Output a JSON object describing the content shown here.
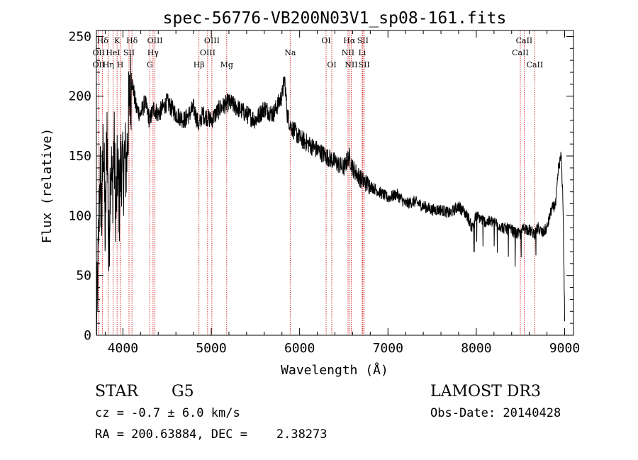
{
  "chart_data": {
    "type": "line",
    "title": "spec-56776-VB200N03V1_sp08-161.fits",
    "xlabel": "Wavelength (Å)",
    "ylabel": "Flux (relative)",
    "xlim": [
      3700,
      9100
    ],
    "ylim": [
      0,
      255
    ],
    "xticks": [
      4000,
      5000,
      6000,
      7000,
      8000,
      9000
    ],
    "yticks": [
      0,
      50,
      100,
      150,
      200,
      250
    ],
    "grid": false,
    "series": [
      {
        "name": "flux",
        "x": [
          3700,
          3720,
          3740,
          3760,
          3780,
          3800,
          3820,
          3840,
          3860,
          3880,
          3900,
          3920,
          3940,
          3960,
          3980,
          4000,
          4020,
          4040,
          4060,
          4080,
          4100,
          4150,
          4200,
          4250,
          4300,
          4350,
          4400,
          4500,
          4600,
          4700,
          4800,
          4860,
          4900,
          5000,
          5100,
          5200,
          5300,
          5400,
          5500,
          5600,
          5700,
          5800,
          5830,
          5860,
          5900,
          6000,
          6100,
          6200,
          6300,
          6400,
          6500,
          6560,
          6600,
          6700,
          6800,
          6900,
          7000,
          7100,
          7200,
          7300,
          7400,
          7500,
          7600,
          7700,
          7800,
          7900,
          7950,
          8000,
          8100,
          8200,
          8300,
          8400,
          8450,
          8500,
          8540,
          8600,
          8660,
          8700,
          8750,
          8800,
          8850,
          8900,
          8930,
          8960,
          8980,
          9000
        ],
        "y": [
          2,
          60,
          140,
          100,
          170,
          80,
          180,
          60,
          150,
          120,
          160,
          100,
          140,
          110,
          150,
          130,
          150,
          140,
          180,
          200,
          215,
          190,
          185,
          195,
          180,
          190,
          185,
          195,
          185,
          180,
          190,
          175,
          185,
          180,
          190,
          195,
          190,
          185,
          180,
          190,
          185,
          200,
          215,
          185,
          175,
          165,
          160,
          155,
          150,
          145,
          140,
          150,
          140,
          130,
          125,
          120,
          115,
          118,
          110,
          112,
          108,
          105,
          105,
          102,
          108,
          100,
          90,
          100,
          95,
          95,
          90,
          88,
          85,
          85,
          90,
          88,
          85,
          90,
          85,
          90,
          105,
          110,
          140,
          150,
          115,
          15
        ]
      }
    ],
    "line_markers": [
      {
        "label": "Hδ",
        "wavelength": 3770,
        "row": 0
      },
      {
        "label": "OII",
        "wavelength": 3727,
        "row": 1
      },
      {
        "label": "OII",
        "wavelength": 3727,
        "row": 2
      },
      {
        "label": "HeI",
        "wavelength": 3889,
        "row": 1
      },
      {
        "label": "Hη",
        "wavelength": 3835,
        "row": 2
      },
      {
        "label": "K",
        "wavelength": 3934,
        "row": 0
      },
      {
        "label": "SII",
        "wavelength": 4069,
        "row": 1
      },
      {
        "label": "H",
        "wavelength": 3969,
        "row": 2
      },
      {
        "label": "Hδ",
        "wavelength": 4102,
        "row": 0
      },
      {
        "label": "OIII",
        "wavelength": 4363,
        "row": 0
      },
      {
        "label": "Hγ",
        "wavelength": 4341,
        "row": 1
      },
      {
        "label": "G",
        "wavelength": 4305,
        "row": 2
      },
      {
        "label": "Hβ",
        "wavelength": 4861,
        "row": 2
      },
      {
        "label": "OIII",
        "wavelength": 5007,
        "row": 0
      },
      {
        "label": "OIII",
        "wavelength": 4959,
        "row": 1
      },
      {
        "label": "Mg",
        "wavelength": 5175,
        "row": 2
      },
      {
        "label": "Na",
        "wavelength": 5893,
        "row": 1
      },
      {
        "label": "OI",
        "wavelength": 6300,
        "row": 0
      },
      {
        "label": "OI",
        "wavelength": 6364,
        "row": 2
      },
      {
        "label": "Hα",
        "wavelength": 6563,
        "row": 0
      },
      {
        "label": "SII",
        "wavelength": 6716,
        "row": 0
      },
      {
        "label": "NII",
        "wavelength": 6548,
        "row": 1
      },
      {
        "label": "Li",
        "wavelength": 6708,
        "row": 1
      },
      {
        "label": "NII",
        "wavelength": 6584,
        "row": 2
      },
      {
        "label": "SII",
        "wavelength": 6731,
        "row": 2
      },
      {
        "label": "CaII",
        "wavelength": 8542,
        "row": 0
      },
      {
        "label": "CaII",
        "wavelength": 8498,
        "row": 1
      },
      {
        "label": "CaII",
        "wavelength": 8662,
        "row": 2
      }
    ]
  },
  "info": {
    "object_class": "STAR",
    "subclass": "G5",
    "survey": "LAMOST DR3",
    "redshift": "cz = -0.7 ± 6.0 km/s",
    "obs_date": "Obs-Date: 20140428",
    "coords": "RA = 200.63884, DEC =    2.38273"
  },
  "colors": {
    "line": "#000000",
    "marker": "#cc0000",
    "background": "#ffffff"
  }
}
